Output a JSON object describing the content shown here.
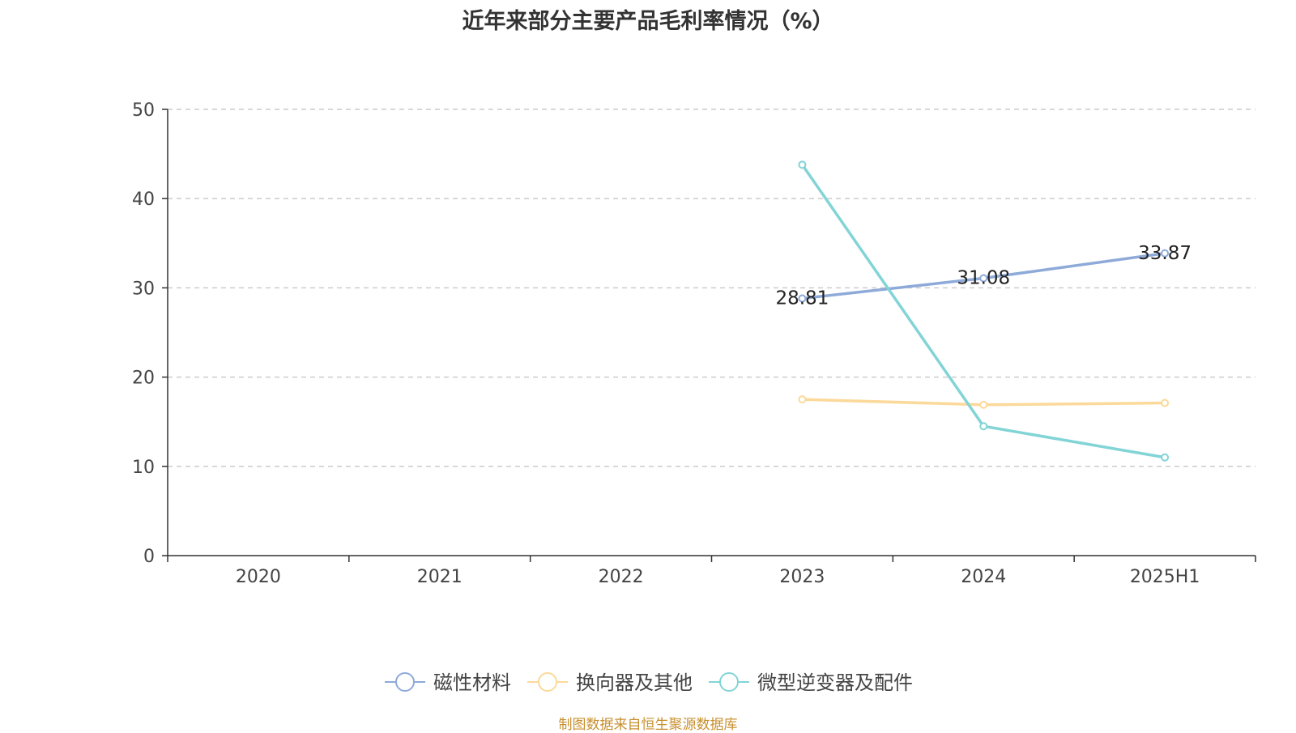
{
  "title": "近年来部分主要产品毛利率情况（%）",
  "source": "制图数据来自恒生聚源数据库",
  "chart_data": {
    "type": "line",
    "title": "近年来部分主要产品毛利率情况（%）",
    "categories": [
      "2020",
      "2021",
      "2022",
      "2023",
      "2024",
      "2025H1"
    ],
    "ylim": [
      0,
      50
    ],
    "yticks": [
      0,
      10,
      20,
      30,
      40,
      50
    ],
    "grid": true,
    "legend_position": "bottom",
    "series": [
      {
        "name": "磁性材料",
        "color": "#8eaad9",
        "values": [
          null,
          null,
          null,
          28.81,
          31.08,
          33.87
        ],
        "labels": true
      },
      {
        "name": "换向器及其他",
        "color": "#fbd99a",
        "values": [
          null,
          null,
          null,
          17.5,
          16.9,
          17.1
        ],
        "labels": false
      },
      {
        "name": "微型逆变器及配件",
        "color": "#82d4d6",
        "values": [
          null,
          null,
          null,
          43.8,
          14.5,
          11.0
        ],
        "labels": false
      }
    ]
  }
}
